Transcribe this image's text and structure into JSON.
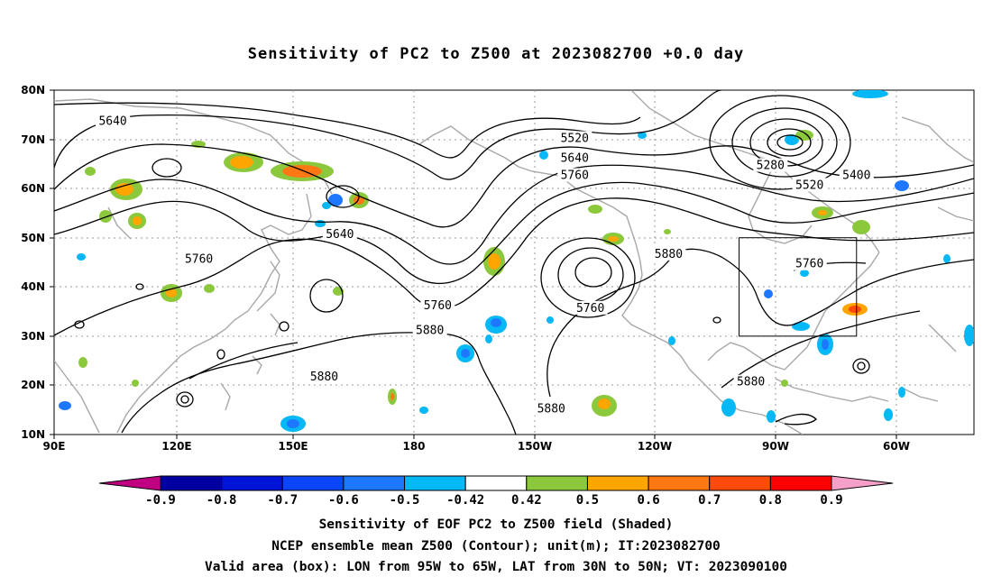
{
  "title": "Sensitivity of PC2 to Z500 at 2023082700 +0.0 day",
  "lat_labels": [
    "80N",
    "70N",
    "60N",
    "50N",
    "40N",
    "30N",
    "20N",
    "10N"
  ],
  "lon_labels": [
    "90E",
    "120E",
    "150E",
    "180",
    "150W",
    "120W",
    "90W",
    "60W"
  ],
  "contour_labels": [
    {
      "text": "5640",
      "lon": 105,
      "lat": 73.5
    },
    {
      "text": "5520",
      "lon": -137,
      "lat": 70
    },
    {
      "text": "5640",
      "lon": -137,
      "lat": 66
    },
    {
      "text": "5760",
      "lon": -137,
      "lat": 62.5
    },
    {
      "text": "5280",
      "lon": -87,
      "lat": 64.5
    },
    {
      "text": "5520",
      "lon": -77,
      "lat": 60.5
    },
    {
      "text": "5400",
      "lon": -65,
      "lat": 62.5
    },
    {
      "text": "5640",
      "lon": 163,
      "lat": 50.5
    },
    {
      "text": "5760",
      "lon": 127,
      "lat": 45.5
    },
    {
      "text": "5880",
      "lon": -113,
      "lat": 46.5
    },
    {
      "text": "5760",
      "lon": -77,
      "lat": 44.5
    },
    {
      "text": "5760",
      "lon": -172,
      "lat": 36
    },
    {
      "text": "5760",
      "lon": -133,
      "lat": 35.5
    },
    {
      "text": "5880",
      "lon": -174,
      "lat": 31
    },
    {
      "text": "5880",
      "lon": 159,
      "lat": 21.5
    },
    {
      "text": "5880",
      "lon": -143,
      "lat": 15
    },
    {
      "text": "5880",
      "lon": -92,
      "lat": 20.5
    }
  ],
  "colorbar": {
    "labels": [
      "-0.9",
      "-0.8",
      "-0.7",
      "-0.6",
      "-0.5",
      "-0.42",
      "0.42",
      "0.5",
      "0.6",
      "0.7",
      "0.8",
      "0.9"
    ],
    "colors": [
      "#0000a0",
      "#0014d8",
      "#0a46f5",
      "#1e78ff",
      "#06b8f5",
      "#ffffff",
      "#8cc83c",
      "#ffa500",
      "#ff7814",
      "#ff4a0a",
      "#ff0000"
    ],
    "low_arrow_color": "#c00080",
    "high_arrow_color": "#f5a0c8"
  },
  "footer": {
    "line1": "Sensitivity of EOF PC2 to Z500 field (Shaded)",
    "line2": "NCEP ensemble mean Z500 (Contour); unit(m); IT:2023082700",
    "line3": "Valid area (box): LON from 95W to 65W, LAT from 30N to 50N; VT: 2023090100"
  },
  "valid_box": {
    "lon_w": -95,
    "lon_e": -65,
    "lat_s": 30,
    "lat_n": 50
  }
}
